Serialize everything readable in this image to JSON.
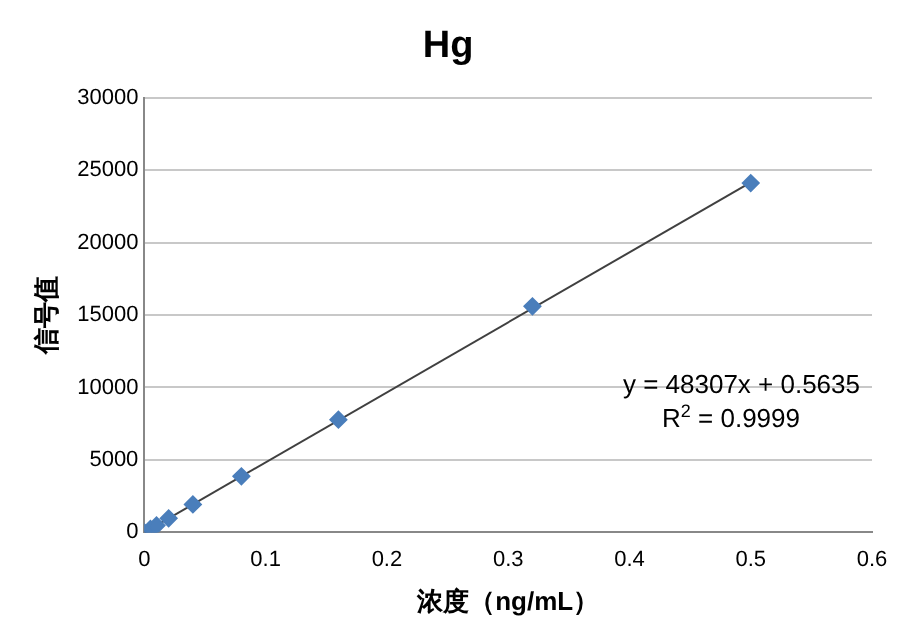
{
  "chart_data": {
    "type": "scatter",
    "title": "Hg",
    "xlabel": "浓度（ng/mL）",
    "ylabel": "信号值",
    "series": [
      {
        "color": "#4a7ebb",
        "x": [
          0,
          0.005,
          0.01,
          0.02,
          0.04,
          0.08,
          0.16,
          0.32,
          0.5
        ],
        "values": [
          0,
          240,
          480,
          970,
          1930,
          3870,
          7780,
          15600,
          24100
        ],
        "marker": "diamond"
      },
      {
        "type": "line",
        "color": "#404040",
        "x": [
          0,
          0.5
        ],
        "values": [
          0.5635,
          24154
        ],
        "marker": "none"
      }
    ],
    "xlim": [
      0,
      0.6
    ],
    "xticks": [
      0,
      0.1,
      0.2,
      0.3,
      0.4,
      0.5,
      0.6
    ],
    "ylim": [
      0,
      30000
    ],
    "yticks": [
      0,
      5000,
      10000,
      15000,
      20000,
      25000,
      30000
    ],
    "grid": "y",
    "legend": false,
    "annotations": [
      "y = 48307x + 0.5635",
      "R$^{2}$ = 0.9999"
    ]
  }
}
